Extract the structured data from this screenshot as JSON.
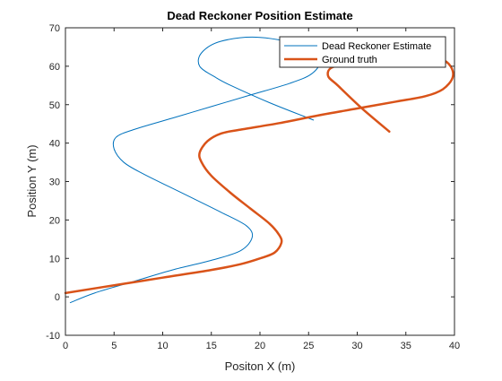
{
  "chart_data": {
    "type": "line",
    "title": "Dead Reckoner Position Estimate",
    "xlabel": "Positon X (m)",
    "ylabel": "Position Y (m)",
    "xlim": [
      0,
      40
    ],
    "ylim": [
      -10,
      70
    ],
    "xticks": [
      0,
      5,
      10,
      15,
      20,
      25,
      30,
      35,
      40
    ],
    "yticks": [
      -10,
      0,
      10,
      20,
      30,
      40,
      50,
      60,
      70
    ],
    "grid": false,
    "legend_position": "top-right",
    "series": [
      {
        "name": "Dead Reckoner Estimate",
        "color": "#0072BD",
        "width": 1,
        "x": [
          0.5,
          3,
          7,
          11,
          15,
          18,
          19.2,
          18.6,
          16,
          12,
          8,
          6,
          5,
          5.2,
          7,
          11,
          15,
          19,
          23,
          25.3,
          26.2,
          25,
          20,
          16,
          14,
          13.8,
          15.5,
          17,
          21,
          25.5
        ],
        "y": [
          -1.5,
          1,
          4,
          7,
          9.5,
          12,
          15.5,
          18.5,
          22,
          27,
          32,
          35,
          38.5,
          41.5,
          43.5,
          46.5,
          49.5,
          52.5,
          55.5,
          58,
          61.5,
          65,
          67.5,
          66.5,
          63.5,
          60,
          57,
          55,
          50.5,
          46
        ]
      },
      {
        "name": "Ground truth",
        "color": "#D95319",
        "width": 2.5,
        "x": [
          0,
          5,
          10,
          15,
          18,
          20,
          21.5,
          22.2,
          22,
          21,
          19,
          17,
          15,
          14,
          13.8,
          14.6,
          16,
          18,
          22,
          26,
          30,
          34,
          37,
          38.8,
          39.8,
          39.6,
          38.5,
          36.8,
          35,
          30,
          27.5,
          27,
          28,
          30.5,
          33.3
        ],
        "y": [
          1,
          3,
          5,
          7,
          8.5,
          10,
          11.5,
          14,
          16,
          19,
          23,
          27,
          31.5,
          35,
          37.5,
          40.5,
          42.5,
          43.5,
          45.2,
          47.2,
          49,
          50.8,
          52.2,
          54,
          57,
          60,
          62,
          62.3,
          61.5,
          60.5,
          59.8,
          57.5,
          55,
          49,
          43
        ]
      }
    ]
  }
}
